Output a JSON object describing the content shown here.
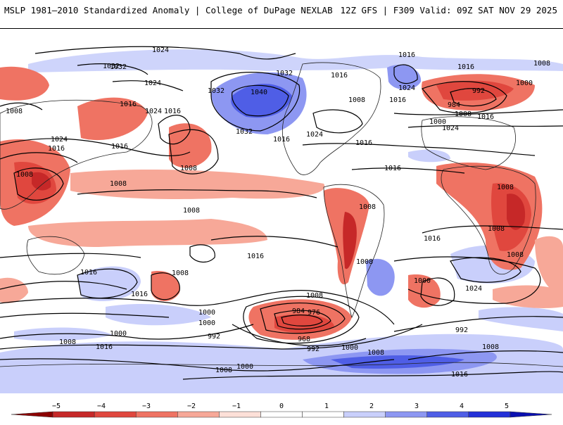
{
  "header": {
    "title_left": "MSLP 1981–2010 Standardized Anomaly | College of DuPage NEXLAB",
    "title_right": "12Z GFS | F309 Valid: 09Z SAT NOV 29 2025"
  },
  "contours": [
    {
      "label": "1024"
    },
    {
      "label": "1032"
    },
    {
      "label": "1024"
    },
    {
      "label": "1032"
    },
    {
      "label": "1040"
    },
    {
      "label": "1032"
    },
    {
      "label": "1032"
    },
    {
      "label": "1016"
    },
    {
      "label": "1016"
    },
    {
      "label": "1008"
    },
    {
      "label": "1016"
    },
    {
      "label": "1024"
    },
    {
      "label": "1016"
    },
    {
      "label": "1008"
    },
    {
      "label": "1000"
    },
    {
      "label": "992"
    },
    {
      "label": "984"
    },
    {
      "label": "1016"
    },
    {
      "label": "1008"
    },
    {
      "label": "1000"
    },
    {
      "label": "1024"
    },
    {
      "label": "1032"
    },
    {
      "label": "1024"
    },
    {
      "label": "1016"
    },
    {
      "label": "1008"
    },
    {
      "label": "1016"
    },
    {
      "label": "1024"
    },
    {
      "label": "1016"
    },
    {
      "label": "1008"
    },
    {
      "label": "1016"
    },
    {
      "label": "1008"
    },
    {
      "label": "1008"
    },
    {
      "label": "1016"
    },
    {
      "label": "1024"
    },
    {
      "label": "1016"
    },
    {
      "label": "1008"
    },
    {
      "label": "1016"
    },
    {
      "label": "1008"
    },
    {
      "label": "1016"
    },
    {
      "label": "1008"
    },
    {
      "label": "1016"
    },
    {
      "label": "1024"
    },
    {
      "label": "1000"
    },
    {
      "label": "1008"
    },
    {
      "label": "1008"
    },
    {
      "label": "1008"
    },
    {
      "label": "1016"
    },
    {
      "label": "1008"
    },
    {
      "label": "1016"
    },
    {
      "label": "1008"
    },
    {
      "label": "1000"
    },
    {
      "label": "1000"
    },
    {
      "label": "992"
    },
    {
      "label": "984"
    },
    {
      "label": "976"
    },
    {
      "label": "968"
    },
    {
      "label": "992"
    },
    {
      "label": "1000"
    },
    {
      "label": "1008"
    },
    {
      "label": "1000"
    },
    {
      "label": "1008"
    },
    {
      "label": "1016"
    },
    {
      "label": "992"
    },
    {
      "label": "1008"
    },
    {
      "label": "1016"
    },
    {
      "label": "1008"
    },
    {
      "label": "1000"
    }
  ],
  "colorbar": {
    "ticks": [
      "−5",
      "−4",
      "−3",
      "−2",
      "−1",
      "0",
      "1",
      "2",
      "3",
      "4",
      "5"
    ],
    "colors": [
      "#8b0000",
      "#c62828",
      "#e0473e",
      "#ef7363",
      "#f7a898",
      "#fde0d8",
      "#ffffff",
      "#ffffff",
      "#c9cffb",
      "#8d97f2",
      "#4f5ee6",
      "#2330d8",
      "#0a10b0"
    ]
  },
  "colors": {
    "red_light": "#f7a898",
    "red_mid": "#ef7363",
    "red_dark": "#e0473e",
    "red_deep": "#c62828",
    "blue_light": "#c9cffb",
    "blue_mid": "#8d97f2",
    "blue_dark": "#4f5ee6"
  }
}
